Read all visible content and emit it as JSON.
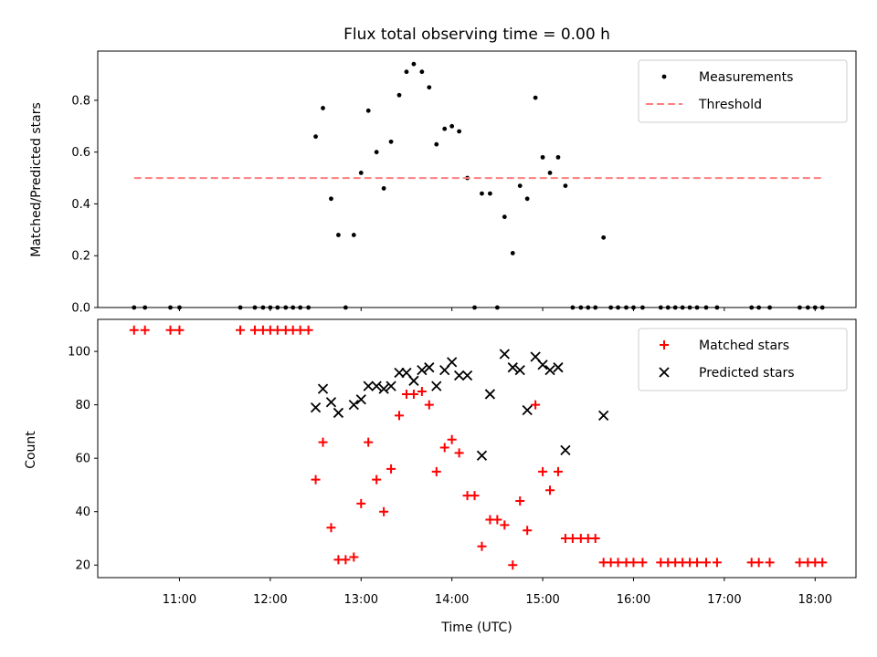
{
  "chart_data": [
    {
      "type": "scatter",
      "title": "Flux total observing time = 0.00 h",
      "xlabel": "",
      "ylabel": "Matched/Predicted stars",
      "xlim": [
        10.1,
        18.45
      ],
      "ylim": [
        0,
        0.99
      ],
      "yticks": [
        0.0,
        0.2,
        0.4,
        0.6,
        0.8
      ],
      "ytick_labels": [
        "0.0",
        "0.2",
        "0.4",
        "0.6",
        "0.8"
      ],
      "legend_position": "top-right",
      "grid": false,
      "series": [
        {
          "name": "Measurements",
          "kind": "dots",
          "color": "#000000",
          "points": [
            [
              10.5,
              0
            ],
            [
              10.62,
              0
            ],
            [
              10.9,
              0
            ],
            [
              11.0,
              0
            ],
            [
              11.67,
              0
            ],
            [
              11.83,
              0
            ],
            [
              11.92,
              0
            ],
            [
              12.0,
              0
            ],
            [
              12.08,
              0
            ],
            [
              12.17,
              0
            ],
            [
              12.25,
              0
            ],
            [
              12.33,
              0
            ],
            [
              12.42,
              0
            ],
            [
              12.5,
              0.66
            ],
            [
              12.58,
              0.77
            ],
            [
              12.67,
              0.42
            ],
            [
              12.75,
              0.28
            ],
            [
              12.83,
              0
            ],
            [
              12.92,
              0.28
            ],
            [
              13.0,
              0.52
            ],
            [
              13.08,
              0.76
            ],
            [
              13.17,
              0.6
            ],
            [
              13.25,
              0.46
            ],
            [
              13.33,
              0.64
            ],
            [
              13.42,
              0.82
            ],
            [
              13.5,
              0.91
            ],
            [
              13.58,
              0.94
            ],
            [
              13.67,
              0.91
            ],
            [
              13.75,
              0.85
            ],
            [
              13.83,
              0.63
            ],
            [
              13.92,
              0.69
            ],
            [
              14.0,
              0.7
            ],
            [
              14.08,
              0.68
            ],
            [
              14.17,
              0.5
            ],
            [
              14.25,
              0
            ],
            [
              14.33,
              0.44
            ],
            [
              14.42,
              0.44
            ],
            [
              14.5,
              0
            ],
            [
              14.58,
              0.35
            ],
            [
              14.67,
              0.21
            ],
            [
              14.75,
              0.47
            ],
            [
              14.83,
              0.42
            ],
            [
              14.92,
              0.81
            ],
            [
              15.0,
              0.58
            ],
            [
              15.08,
              0.52
            ],
            [
              15.17,
              0.58
            ],
            [
              15.25,
              0.47
            ],
            [
              15.33,
              0
            ],
            [
              15.42,
              0
            ],
            [
              15.5,
              0
            ],
            [
              15.58,
              0
            ],
            [
              15.67,
              0.27
            ],
            [
              15.75,
              0
            ],
            [
              15.83,
              0
            ],
            [
              15.92,
              0
            ],
            [
              16.0,
              0
            ],
            [
              16.1,
              0
            ],
            [
              16.3,
              0
            ],
            [
              16.38,
              0
            ],
            [
              16.46,
              0
            ],
            [
              16.54,
              0
            ],
            [
              16.62,
              0
            ],
            [
              16.7,
              0
            ],
            [
              16.8,
              0
            ],
            [
              16.92,
              0
            ],
            [
              17.3,
              0
            ],
            [
              17.38,
              0
            ],
            [
              17.5,
              0
            ],
            [
              17.83,
              0
            ],
            [
              17.92,
              0
            ],
            [
              18.0,
              0
            ],
            [
              18.08,
              0
            ]
          ]
        },
        {
          "name": "Threshold",
          "kind": "dashed-line",
          "color": "#ff7f7f",
          "points": [
            [
              10.5,
              0.5
            ],
            [
              18.08,
              0.5
            ]
          ]
        }
      ]
    },
    {
      "type": "scatter",
      "title": "",
      "xlabel": "Time (UTC)",
      "ylabel": "Count",
      "xlim": [
        10.1,
        18.45
      ],
      "ylim": [
        15.3,
        112
      ],
      "xticks": [
        11,
        12,
        13,
        14,
        15,
        16,
        17,
        18
      ],
      "xtick_labels": [
        "11:00",
        "12:00",
        "13:00",
        "14:00",
        "15:00",
        "16:00",
        "17:00",
        "18:00"
      ],
      "yticks": [
        20,
        40,
        60,
        80,
        100
      ],
      "ytick_labels": [
        "20",
        "40",
        "60",
        "80",
        "100"
      ],
      "legend_position": "top-right",
      "grid": false,
      "series": [
        {
          "name": "Matched stars",
          "kind": "plus",
          "color": "#ff0000",
          "points": [
            [
              10.5,
              108
            ],
            [
              10.62,
              108
            ],
            [
              10.9,
              108
            ],
            [
              11.0,
              108
            ],
            [
              11.67,
              108
            ],
            [
              11.83,
              108
            ],
            [
              11.92,
              108
            ],
            [
              12.0,
              108
            ],
            [
              12.08,
              108
            ],
            [
              12.17,
              108
            ],
            [
              12.25,
              108
            ],
            [
              12.33,
              108
            ],
            [
              12.42,
              108
            ],
            [
              12.5,
              52
            ],
            [
              12.58,
              66
            ],
            [
              12.67,
              34
            ],
            [
              12.75,
              22
            ],
            [
              12.83,
              22
            ],
            [
              12.92,
              23
            ],
            [
              13.0,
              43
            ],
            [
              13.08,
              66
            ],
            [
              13.17,
              52
            ],
            [
              13.25,
              40
            ],
            [
              13.33,
              56
            ],
            [
              13.42,
              76
            ],
            [
              13.5,
              84
            ],
            [
              13.58,
              84
            ],
            [
              13.67,
              85
            ],
            [
              13.75,
              80
            ],
            [
              13.83,
              55
            ],
            [
              13.92,
              64
            ],
            [
              14.0,
              67
            ],
            [
              14.08,
              62
            ],
            [
              14.17,
              46
            ],
            [
              14.25,
              46
            ],
            [
              14.33,
              27
            ],
            [
              14.42,
              37
            ],
            [
              14.5,
              37
            ],
            [
              14.58,
              35
            ],
            [
              14.67,
              20
            ],
            [
              14.75,
              44
            ],
            [
              14.83,
              33
            ],
            [
              14.92,
              80
            ],
            [
              15.0,
              55
            ],
            [
              15.08,
              48
            ],
            [
              15.17,
              55
            ],
            [
              15.25,
              30
            ],
            [
              15.33,
              30
            ],
            [
              15.42,
              30
            ],
            [
              15.5,
              30
            ],
            [
              15.58,
              30
            ],
            [
              15.67,
              21
            ],
            [
              15.75,
              21
            ],
            [
              15.83,
              21
            ],
            [
              15.92,
              21
            ],
            [
              16.0,
              21
            ],
            [
              16.1,
              21
            ],
            [
              16.3,
              21
            ],
            [
              16.38,
              21
            ],
            [
              16.46,
              21
            ],
            [
              16.54,
              21
            ],
            [
              16.62,
              21
            ],
            [
              16.7,
              21
            ],
            [
              16.8,
              21
            ],
            [
              16.92,
              21
            ],
            [
              17.3,
              21
            ],
            [
              17.38,
              21
            ],
            [
              17.5,
              21
            ],
            [
              17.83,
              21
            ],
            [
              17.92,
              21
            ],
            [
              18.0,
              21
            ],
            [
              18.08,
              21
            ]
          ]
        },
        {
          "name": "Predicted stars",
          "kind": "x",
          "color": "#000000",
          "points": [
            [
              12.5,
              79
            ],
            [
              12.58,
              86
            ],
            [
              12.67,
              81
            ],
            [
              12.75,
              77
            ],
            [
              12.92,
              80
            ],
            [
              13.0,
              82
            ],
            [
              13.08,
              87
            ],
            [
              13.17,
              87
            ],
            [
              13.25,
              86
            ],
            [
              13.33,
              87
            ],
            [
              13.42,
              92
            ],
            [
              13.5,
              92
            ],
            [
              13.58,
              89
            ],
            [
              13.67,
              93
            ],
            [
              13.75,
              94
            ],
            [
              13.83,
              87
            ],
            [
              13.92,
              93
            ],
            [
              14.0,
              96
            ],
            [
              14.08,
              91
            ],
            [
              14.17,
              91
            ],
            [
              14.33,
              61
            ],
            [
              14.42,
              84
            ],
            [
              14.58,
              99
            ],
            [
              14.67,
              94
            ],
            [
              14.75,
              93
            ],
            [
              14.83,
              78
            ],
            [
              14.92,
              98
            ],
            [
              15.0,
              95
            ],
            [
              15.08,
              93
            ],
            [
              15.17,
              94
            ],
            [
              15.25,
              63
            ],
            [
              15.67,
              76
            ]
          ]
        }
      ]
    }
  ]
}
